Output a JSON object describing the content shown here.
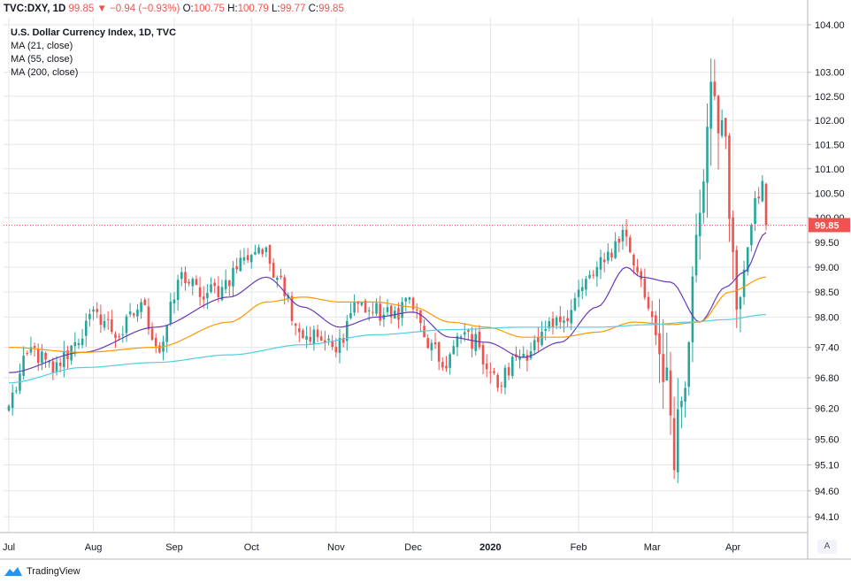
{
  "header": {
    "symbol": "TVC:DXY, 1D",
    "last": "99.85",
    "arrow": "▼",
    "change": "−0.94 (−0.93%)",
    "o_label": "O:",
    "o_value": "100.75",
    "h_label": "H:",
    "h_value": "100.79",
    "l_label": "L:",
    "l_value": "99.77",
    "c_label": "C:",
    "c_value": "99.85"
  },
  "legend": {
    "title": "U.S. Dollar Currency Index, 1D, TVC",
    "ma1": "MA (21, close)",
    "ma2": "MA (55, close)",
    "ma3": "MA (200, close)"
  },
  "footer": {
    "brand": "TradingView"
  },
  "auto_button": "A",
  "colors": {
    "up": "#26a69a",
    "down": "#ef5350",
    "ma21": "#673ab7",
    "ma55": "#ff9800",
    "ma200": "#4dd0e1",
    "grid": "#e6e6e6",
    "price_label_bg": "#ef5350"
  },
  "chart_data": {
    "type": "candlestick",
    "title": "U.S. Dollar Currency Index, 1D, TVC",
    "y_scale": "log",
    "ylim": [
      93.8,
      104.0
    ],
    "y_ticks": [
      104.0,
      103.0,
      102.5,
      102.0,
      101.5,
      101.0,
      100.5,
      100.0,
      99.5,
      99.0,
      98.5,
      98.0,
      97.4,
      96.8,
      96.2,
      95.6,
      95.1,
      94.6,
      94.1
    ],
    "y_tick_labels": [
      "104.00",
      "103.00",
      "102.50",
      "102.00",
      "101.50",
      "101.00",
      "100.50",
      "100.00",
      "99.50",
      "99.00",
      "98.50",
      "98.00",
      "97.40",
      "96.80",
      "96.20",
      "95.60",
      "95.10",
      "94.60",
      "94.10"
    ],
    "x_ticks": [
      {
        "label": "Jul",
        "index": 0
      },
      {
        "label": "Aug",
        "index": 23
      },
      {
        "label": "Sep",
        "index": 45
      },
      {
        "label": "Oct",
        "index": 66
      },
      {
        "label": "Nov",
        "index": 89
      },
      {
        "label": "Dec",
        "index": 110
      },
      {
        "label": "2020",
        "index": 131
      },
      {
        "label": "Feb",
        "index": 155
      },
      {
        "label": "Mar",
        "index": 175
      },
      {
        "label": "Apr",
        "index": 197
      }
    ],
    "last_price": 99.85,
    "last_price_label": "99.85",
    "key_closes": [
      {
        "index": 0,
        "close": 96.25
      },
      {
        "index": 6,
        "close": 97.4
      },
      {
        "index": 12,
        "close": 96.9
      },
      {
        "index": 18,
        "close": 97.5
      },
      {
        "index": 24,
        "close": 98.1
      },
      {
        "index": 30,
        "close": 97.6
      },
      {
        "index": 36,
        "close": 98.3
      },
      {
        "index": 41,
        "close": 97.3
      },
      {
        "index": 47,
        "close": 98.9
      },
      {
        "index": 52,
        "close": 98.4
      },
      {
        "index": 58,
        "close": 98.6
      },
      {
        "index": 64,
        "close": 99.2
      },
      {
        "index": 68,
        "close": 99.4
      },
      {
        "index": 74,
        "close": 98.8
      },
      {
        "index": 79,
        "close": 97.7
      },
      {
        "index": 84,
        "close": 97.6
      },
      {
        "index": 89,
        "close": 97.3
      },
      {
        "index": 94,
        "close": 98.3
      },
      {
        "index": 99,
        "close": 98.1
      },
      {
        "index": 104,
        "close": 98.0
      },
      {
        "index": 109,
        "close": 98.4
      },
      {
        "index": 113,
        "close": 97.6
      },
      {
        "index": 118,
        "close": 97.0
      },
      {
        "index": 124,
        "close": 97.7
      },
      {
        "index": 128,
        "close": 97.4
      },
      {
        "index": 133,
        "close": 96.6
      },
      {
        "index": 138,
        "close": 97.2
      },
      {
        "index": 144,
        "close": 97.5
      },
      {
        "index": 150,
        "close": 97.9
      },
      {
        "index": 156,
        "close": 98.6
      },
      {
        "index": 162,
        "close": 99.1
      },
      {
        "index": 167,
        "close": 99.75
      },
      {
        "index": 171,
        "close": 98.9
      },
      {
        "index": 175,
        "close": 98.0
      },
      {
        "index": 179,
        "close": 97.0
      },
      {
        "index": 181,
        "close": 95.0
      },
      {
        "index": 184,
        "close": 96.6
      },
      {
        "index": 188,
        "close": 100.1
      },
      {
        "index": 191,
        "close": 102.8
      },
      {
        "index": 194,
        "close": 102.0
      },
      {
        "index": 197,
        "close": 99.3
      },
      {
        "index": 199,
        "close": 98.4
      },
      {
        "index": 201,
        "close": 99.4
      },
      {
        "index": 203,
        "close": 100.4
      },
      {
        "index": 205,
        "close": 100.75
      },
      {
        "index": 206,
        "close": 99.85
      }
    ],
    "series": [
      {
        "name": "MA (21, close)",
        "values_at": [
          [
            0,
            96.9
          ],
          [
            20,
            97.3
          ],
          [
            40,
            97.8
          ],
          [
            60,
            98.4
          ],
          [
            70,
            98.8
          ],
          [
            80,
            98.2
          ],
          [
            90,
            97.8
          ],
          [
            100,
            98.0
          ],
          [
            110,
            98.1
          ],
          [
            120,
            97.6
          ],
          [
            130,
            97.5
          ],
          [
            140,
            97.2
          ],
          [
            150,
            97.5
          ],
          [
            160,
            98.2
          ],
          [
            168,
            99.0
          ],
          [
            172,
            98.8
          ],
          [
            180,
            98.7
          ],
          [
            188,
            97.9
          ],
          [
            195,
            98.6
          ],
          [
            200,
            98.9
          ],
          [
            206,
            99.7
          ]
        ]
      },
      {
        "name": "MA (55, close)",
        "values_at": [
          [
            0,
            97.4
          ],
          [
            20,
            97.3
          ],
          [
            40,
            97.4
          ],
          [
            60,
            97.9
          ],
          [
            70,
            98.3
          ],
          [
            80,
            98.4
          ],
          [
            90,
            98.3
          ],
          [
            100,
            98.3
          ],
          [
            110,
            98.2
          ],
          [
            120,
            97.9
          ],
          [
            130,
            97.8
          ],
          [
            140,
            97.6
          ],
          [
            150,
            97.6
          ],
          [
            160,
            97.7
          ],
          [
            170,
            97.9
          ],
          [
            180,
            97.85
          ],
          [
            188,
            97.9
          ],
          [
            196,
            98.5
          ],
          [
            206,
            98.8
          ]
        ]
      },
      {
        "name": "MA (200, close)",
        "values_at": [
          [
            0,
            96.7
          ],
          [
            20,
            97.0
          ],
          [
            40,
            97.1
          ],
          [
            60,
            97.25
          ],
          [
            80,
            97.45
          ],
          [
            100,
            97.65
          ],
          [
            120,
            97.75
          ],
          [
            140,
            97.8
          ],
          [
            160,
            97.8
          ],
          [
            175,
            97.85
          ],
          [
            185,
            97.9
          ],
          [
            195,
            97.95
          ],
          [
            206,
            98.05
          ]
        ]
      }
    ]
  }
}
